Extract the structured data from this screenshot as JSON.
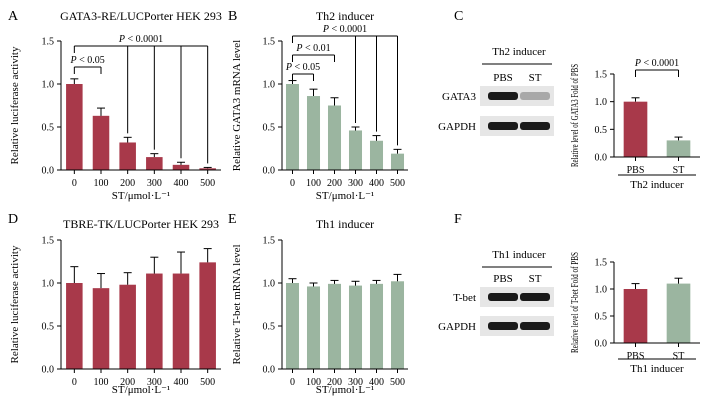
{
  "colors": {
    "red": "#a8394a",
    "green": "#9bb5a0",
    "axis": "#000000",
    "blot_bg": "#e6e6e6",
    "band": "#1a1a1a"
  },
  "chart_data": [
    {
      "id": "A",
      "type": "bar",
      "title": "GATA3-RE/LUCPorter HEK 293",
      "ylabel": "Relative luciferase activity",
      "xlabel": "ST/μmol·L⁻¹",
      "categories": [
        "0",
        "100",
        "200",
        "300",
        "400",
        "500"
      ],
      "values": [
        1.0,
        0.63,
        0.32,
        0.15,
        0.06,
        0.02
      ],
      "errors": [
        0.06,
        0.09,
        0.06,
        0.04,
        0.03,
        0.01
      ],
      "ylim": [
        0,
        1.5
      ],
      "yticks": [
        "0.0",
        "0.5",
        "1.0",
        "1.5"
      ],
      "color": "red",
      "sig": [
        {
          "label": "P < 0.05",
          "from": 0,
          "to": [
            1
          ]
        },
        {
          "label": "P < 0.0001",
          "from": 0,
          "to": [
            2,
            3,
            4,
            5
          ]
        }
      ]
    },
    {
      "id": "B",
      "type": "bar",
      "title": "Th2 inducer",
      "ylabel": "Relative GATA3 mRNA level",
      "xlabel": "ST/μmol·L⁻¹",
      "categories": [
        "0",
        "100",
        "200",
        "300",
        "400",
        "500"
      ],
      "values": [
        1.0,
        0.86,
        0.75,
        0.46,
        0.34,
        0.19
      ],
      "errors": [
        0.04,
        0.08,
        0.09,
        0.04,
        0.06,
        0.05
      ],
      "ylim": [
        0,
        1.5
      ],
      "yticks": [
        "0.0",
        "0.5",
        "1.0",
        "1.5"
      ],
      "color": "green",
      "sig": [
        {
          "label": "P < 0.05",
          "from": 0,
          "to": [
            1
          ]
        },
        {
          "label": "P < 0.01",
          "from": 0,
          "to": [
            2
          ]
        },
        {
          "label": "P < 0.0001",
          "from": 0,
          "to": [
            3,
            4,
            5
          ]
        }
      ]
    },
    {
      "id": "C",
      "type": "bar",
      "title": "",
      "ylabel": "Relative level of GATA3 Fold of PBS",
      "xlabel": "Th2 inducer",
      "categories": [
        "PBS",
        "ST"
      ],
      "values": [
        1.0,
        0.3
      ],
      "errors": [
        0.07,
        0.06
      ],
      "ylim": [
        0,
        1.5
      ],
      "yticks": [
        "0.0",
        "0.5",
        "1.0",
        "1.5"
      ],
      "colors": [
        "red",
        "green"
      ],
      "sig": [
        {
          "label": "P < 0.0001",
          "from": 0,
          "to": [
            1
          ]
        }
      ]
    },
    {
      "id": "D",
      "type": "bar",
      "title": "TBRE-TK/LUCPorter HEK 293",
      "ylabel": "Relative luciferase activity",
      "xlabel": "ST/μmol·L⁻¹",
      "categories": [
        "0",
        "100",
        "200",
        "300",
        "400",
        "500"
      ],
      "values": [
        1.0,
        0.94,
        0.98,
        1.11,
        1.11,
        1.24
      ],
      "errors": [
        0.19,
        0.17,
        0.14,
        0.19,
        0.25,
        0.16
      ],
      "ylim": [
        0,
        1.5
      ],
      "yticks": [
        "0.0",
        "0.5",
        "1.0",
        "1.5"
      ],
      "color": "red",
      "sig": []
    },
    {
      "id": "E",
      "type": "bar",
      "title": "Th1 inducer",
      "ylabel": "Relative T-bet mRNA level",
      "xlabel": "ST/μmol·L⁻¹",
      "categories": [
        "0",
        "100",
        "200",
        "300",
        "400",
        "500"
      ],
      "values": [
        1.0,
        0.96,
        0.99,
        0.97,
        0.99,
        1.02
      ],
      "errors": [
        0.05,
        0.04,
        0.04,
        0.05,
        0.04,
        0.08
      ],
      "ylim": [
        0,
        1.5
      ],
      "yticks": [
        "0.0",
        "0.5",
        "1.0",
        "1.5"
      ],
      "color": "green",
      "sig": []
    },
    {
      "id": "F",
      "type": "bar",
      "title": "",
      "ylabel": "Relative level of T-bet Fold of PBS",
      "xlabel": "Th1 inducer",
      "categories": [
        "PBS",
        "ST"
      ],
      "values": [
        1.0,
        1.1
      ],
      "errors": [
        0.1,
        0.1
      ],
      "ylim": [
        0,
        1.5
      ],
      "yticks": [
        "0.0",
        "0.5",
        "1.0",
        "1.5"
      ],
      "colors": [
        "red",
        "green"
      ],
      "sig": []
    }
  ],
  "blots": [
    {
      "id": "C",
      "title": "Th2 inducer",
      "lanes": [
        "PBS",
        "ST"
      ],
      "rows": [
        {
          "label": "GATA3",
          "intensity": [
            1.0,
            0.3
          ]
        },
        {
          "label": "GAPDH",
          "intensity": [
            1.0,
            1.0
          ]
        }
      ]
    },
    {
      "id": "F",
      "title": "Th1 inducer",
      "lanes": [
        "PBS",
        "ST"
      ],
      "rows": [
        {
          "label": "T-bet",
          "intensity": [
            1.0,
            1.05
          ]
        },
        {
          "label": "GAPDH",
          "intensity": [
            1.0,
            1.0
          ]
        }
      ]
    }
  ]
}
